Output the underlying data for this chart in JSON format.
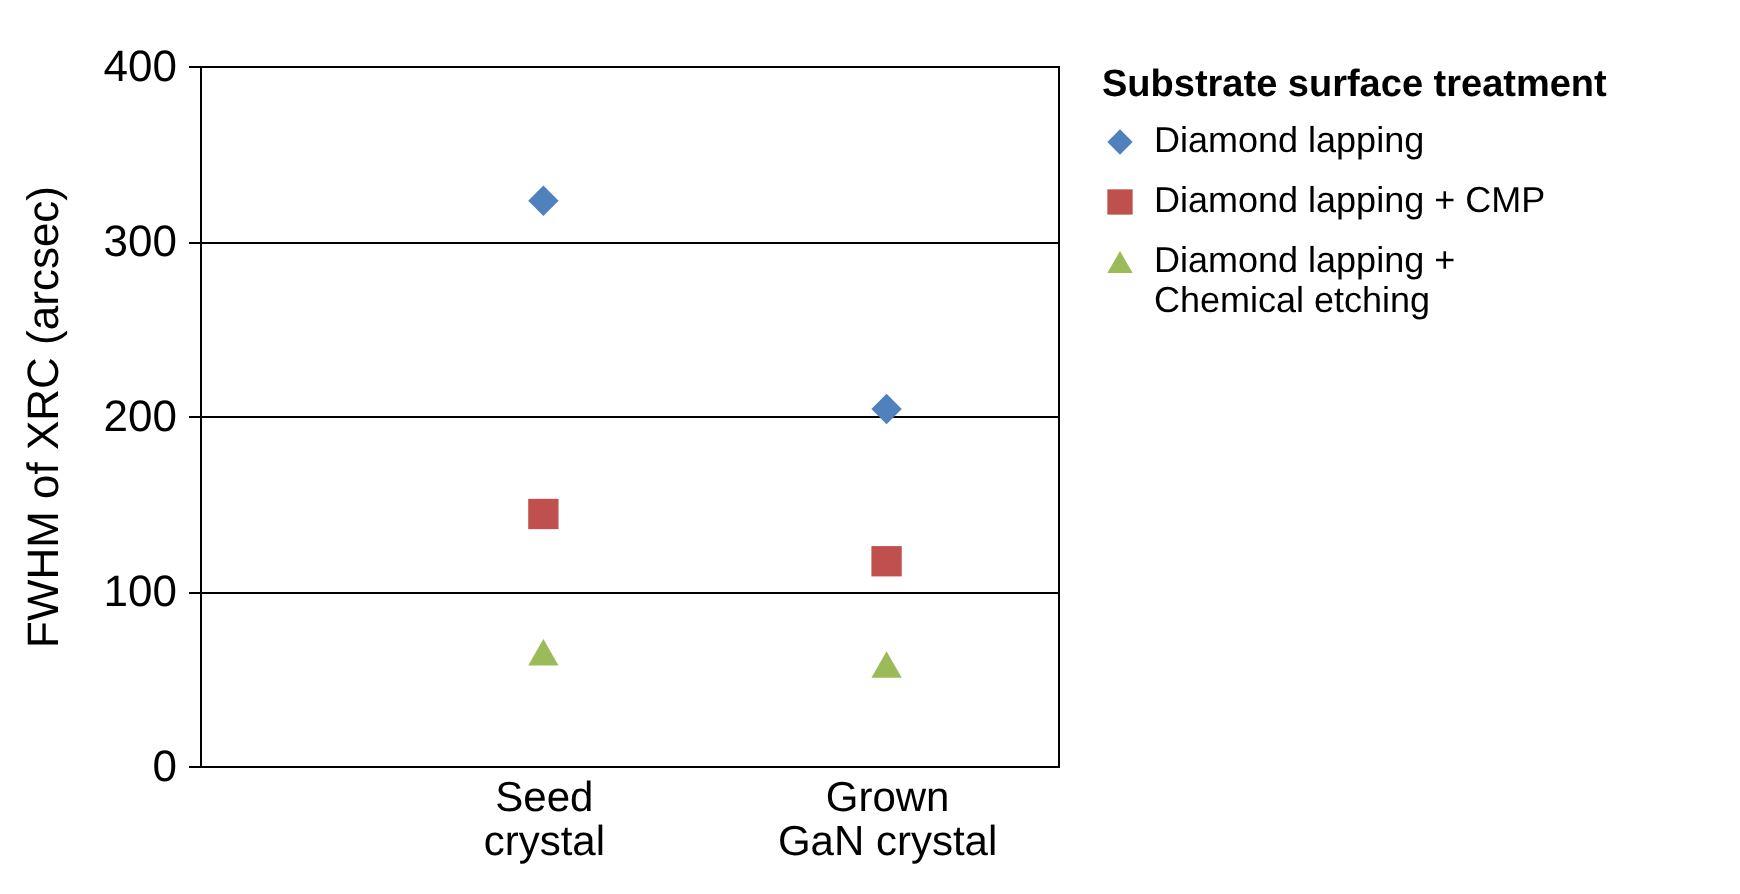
{
  "chart_data": {
    "type": "scatter",
    "ylabel": "FWHM of XRC (arcsec)",
    "legend_title": "Substrate surface treatment",
    "categories": [
      "Seed crystal",
      "Grown GaN crystal"
    ],
    "ylim": [
      0,
      400
    ],
    "yticks": [
      0,
      100,
      200,
      300,
      400
    ],
    "grid": "y",
    "legend": "right",
    "series": [
      {
        "name": "Diamond lapping",
        "color": "#4f81bd",
        "marker": "diamond",
        "values": [
          323,
          204
        ]
      },
      {
        "name": "Diamond lapping + CMP",
        "color": "#c0504d",
        "marker": "square",
        "values": [
          144,
          117
        ]
      },
      {
        "name": "Diamond lapping + Chemical etching",
        "color": "#9bbb59",
        "marker": "triangle",
        "values": [
          65,
          58
        ]
      }
    ]
  }
}
